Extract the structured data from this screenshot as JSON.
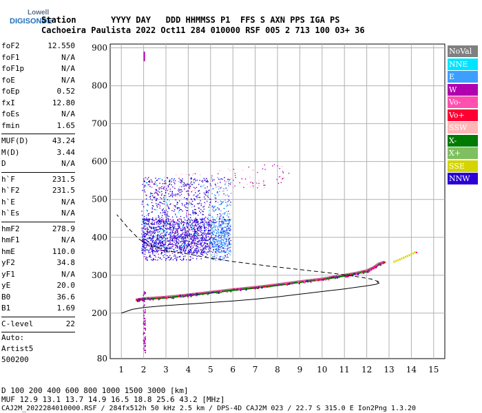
{
  "logo": {
    "top": "Lowell",
    "bottom": "DIGISONDE"
  },
  "header": {
    "line1": "Station       YYYY DAY   DDD HHMMSS P1  FFS S AXN PPS IGA PS",
    "line2": "Cachoeira Paulista 2022 Oct11 284 010000 RSF 005 2 713 100 03+ 36"
  },
  "params_group1": [
    {
      "name": "foF2",
      "value": "12.550"
    },
    {
      "name": "foF1",
      "value": "N/A"
    },
    {
      "name": "foF1p",
      "value": "N/A"
    },
    {
      "name": "foE",
      "value": "N/A"
    },
    {
      "name": "foEp",
      "value": "0.52"
    },
    {
      "name": "fxI",
      "value": "12.80"
    },
    {
      "name": "foEs",
      "value": "N/A"
    },
    {
      "name": "fmin",
      "value": "1.65"
    }
  ],
  "params_group2": [
    {
      "name": "MUF(D)",
      "value": "43.24"
    },
    {
      "name": "M(D)",
      "value": "3.44"
    },
    {
      "name": "D",
      "value": "N/A"
    }
  ],
  "params_group3": [
    {
      "name": "h`F",
      "value": "231.5"
    },
    {
      "name": "h`F2",
      "value": "231.5"
    },
    {
      "name": "h`E",
      "value": "N/A"
    },
    {
      "name": "h`Es",
      "value": "N/A"
    }
  ],
  "params_group4": [
    {
      "name": "hmF2",
      "value": "278.9"
    },
    {
      "name": "hmF1",
      "value": "N/A"
    },
    {
      "name": "hmE",
      "value": "110.0"
    },
    {
      "name": "yF2",
      "value": "34.8"
    },
    {
      "name": "yF1",
      "value": "N/A"
    },
    {
      "name": "yE",
      "value": "20.0"
    },
    {
      "name": "B0",
      "value": "36.6"
    },
    {
      "name": "B1",
      "value": "1.69"
    }
  ],
  "params_group5": [
    {
      "name": "C-level",
      "value": "22"
    }
  ],
  "auto": {
    "line1": "Auto:",
    "line2": "Artist5",
    "line3": "500200"
  },
  "legend": [
    {
      "label": "NoVal",
      "color": "#808080"
    },
    {
      "label": "NNE",
      "color": "#00e5ff"
    },
    {
      "label": "E",
      "color": "#3d9eff"
    },
    {
      "label": "W",
      "color": "#b000b0"
    },
    {
      "label": "Vo-",
      "color": "#ff4fb0"
    },
    {
      "label": "Vo+",
      "color": "#ff0033"
    },
    {
      "label": "SSW",
      "color": "#ffb6b6"
    },
    {
      "label": "X-",
      "color": "#007a00"
    },
    {
      "label": "X+",
      "color": "#7fbf5f"
    },
    {
      "label": "SSE",
      "color": "#d4d400"
    },
    {
      "label": "NNW",
      "color": "#2a00d6"
    }
  ],
  "footer": {
    "line1": "D     100  200  400  600  800 1000  1500 3000 [km]",
    "line2": "MUF  12.9 13.1 13.7 14.9 16.5 18.8 25.6 43.2 [MHz]",
    "line3": "CAJ2M_2022284010000.RSF / 284fx512h 50 kHz 2.5 km / DPS-4D CAJ2M 023 / 22.7 S 315.0 E Ion2Png 1.3.20"
  },
  "chart_data": {
    "type": "scatter",
    "x_ticks": [
      1,
      2,
      3,
      4,
      5,
      6,
      7,
      8,
      9,
      10,
      11,
      12,
      13,
      14,
      15
    ],
    "y_ticks": [
      200,
      300,
      400,
      500,
      600,
      700,
      800,
      900
    ],
    "x_bottom_label": "80",
    "xlim": [
      0.5,
      15.5
    ],
    "ylim": [
      80,
      910
    ],
    "grid": true,
    "traces": {
      "o_trace": {
        "x": [
          1.65,
          2.0,
          3.0,
          4.0,
          5.0,
          6.0,
          7.0,
          8.0,
          9.0,
          10.0,
          11.0,
          11.5,
          12.0,
          12.3,
          12.55,
          12.8
        ],
        "y": [
          235,
          238,
          242,
          248,
          255,
          262,
          268,
          275,
          283,
          290,
          300,
          305,
          312,
          320,
          330,
          335
        ]
      },
      "x_trace": {
        "x": [
          13.2,
          13.5,
          13.8,
          14.0,
          14.2
        ],
        "y": [
          335,
          342,
          350,
          355,
          362
        ]
      },
      "profile_solid": {
        "x": [
          1.0,
          1.5,
          2.0,
          3.0,
          4.0,
          5.0,
          6.0,
          7.0,
          8.0,
          9.0,
          10.0,
          11.0,
          12.0,
          12.4,
          12.55,
          12.45
        ],
        "y": [
          200,
          210,
          215,
          220,
          224,
          228,
          232,
          237,
          243,
          250,
          257,
          264,
          272,
          276,
          279,
          283
        ]
      },
      "profile_dashed": {
        "x": [
          12.55,
          12.2,
          11.5,
          10.5,
          9.0,
          7.5,
          6.0,
          5.0,
          4.0,
          3.0,
          2.3,
          1.8,
          1.3,
          0.8
        ],
        "y": [
          283,
          290,
          297,
          305,
          315,
          325,
          336,
          345,
          356,
          365,
          378,
          395,
          425,
          460
        ]
      },
      "spread_f": {
        "x_range": [
          1.9,
          5.9
        ],
        "y_range": [
          340,
          560
        ],
        "peak_y": [
          360,
          450
        ]
      },
      "vertical_spike": {
        "x": [
          2.0,
          2.0
        ],
        "y": [
          90,
          260
        ]
      }
    }
  }
}
